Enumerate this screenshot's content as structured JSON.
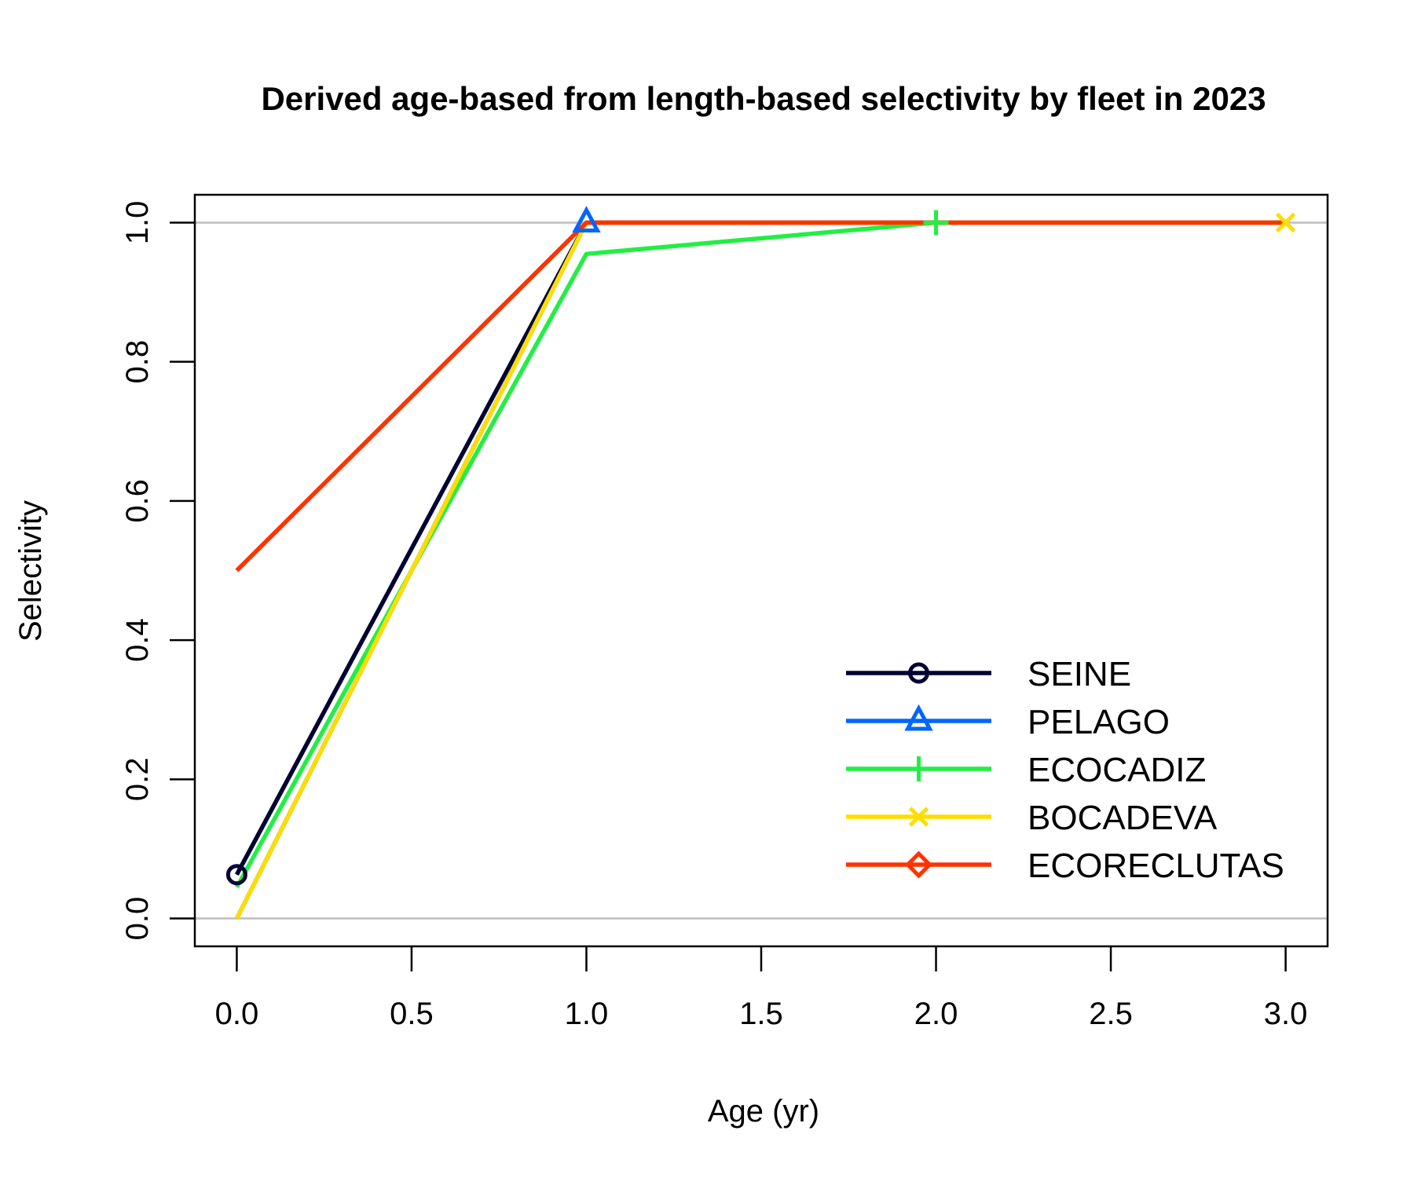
{
  "chart_data": {
    "type": "line",
    "title": "Derived age-based from length-based selectivity by fleet in 2023",
    "xlabel": "Age (yr)",
    "ylabel": "Selectivity",
    "xlim": [
      -0.12,
      3.12
    ],
    "ylim": [
      -0.04,
      1.04
    ],
    "x_ticks": [
      "0.0",
      "0.5",
      "1.0",
      "1.5",
      "2.0",
      "2.5",
      "3.0"
    ],
    "y_ticks": [
      "0.0",
      "0.2",
      "0.4",
      "0.6",
      "0.8",
      "1.0"
    ],
    "reference_lines_y": [
      0,
      1
    ],
    "reference_line_color": "#bebebe",
    "legend_position": "bottom-right",
    "x": [
      0,
      1,
      2,
      3
    ],
    "series": [
      {
        "name": "SEINE",
        "color": "#000033",
        "marker": "circle",
        "marker_x": 0,
        "values": [
          0.063,
          1.0,
          1.0,
          1.0
        ]
      },
      {
        "name": "PELAGO",
        "color": "#0066ff",
        "marker": "triangle",
        "marker_x": 1,
        "values": [
          0.0,
          1.0,
          1.0,
          1.0
        ]
      },
      {
        "name": "ECOCADIZ",
        "color": "#22ee44",
        "marker": "plus",
        "marker_x": 2,
        "values": [
          0.045,
          0.955,
          1.0,
          1.0
        ]
      },
      {
        "name": "BOCADEVA",
        "color": "#ffdd00",
        "marker": "cross",
        "marker_x": 3,
        "values": [
          0.0,
          1.0,
          1.0,
          1.0
        ]
      },
      {
        "name": "ECORECLUTAS",
        "color": "#ff3300",
        "marker": "diamond",
        "marker_x": null,
        "values": [
          0.5,
          1.0,
          1.0,
          1.0
        ]
      }
    ]
  }
}
